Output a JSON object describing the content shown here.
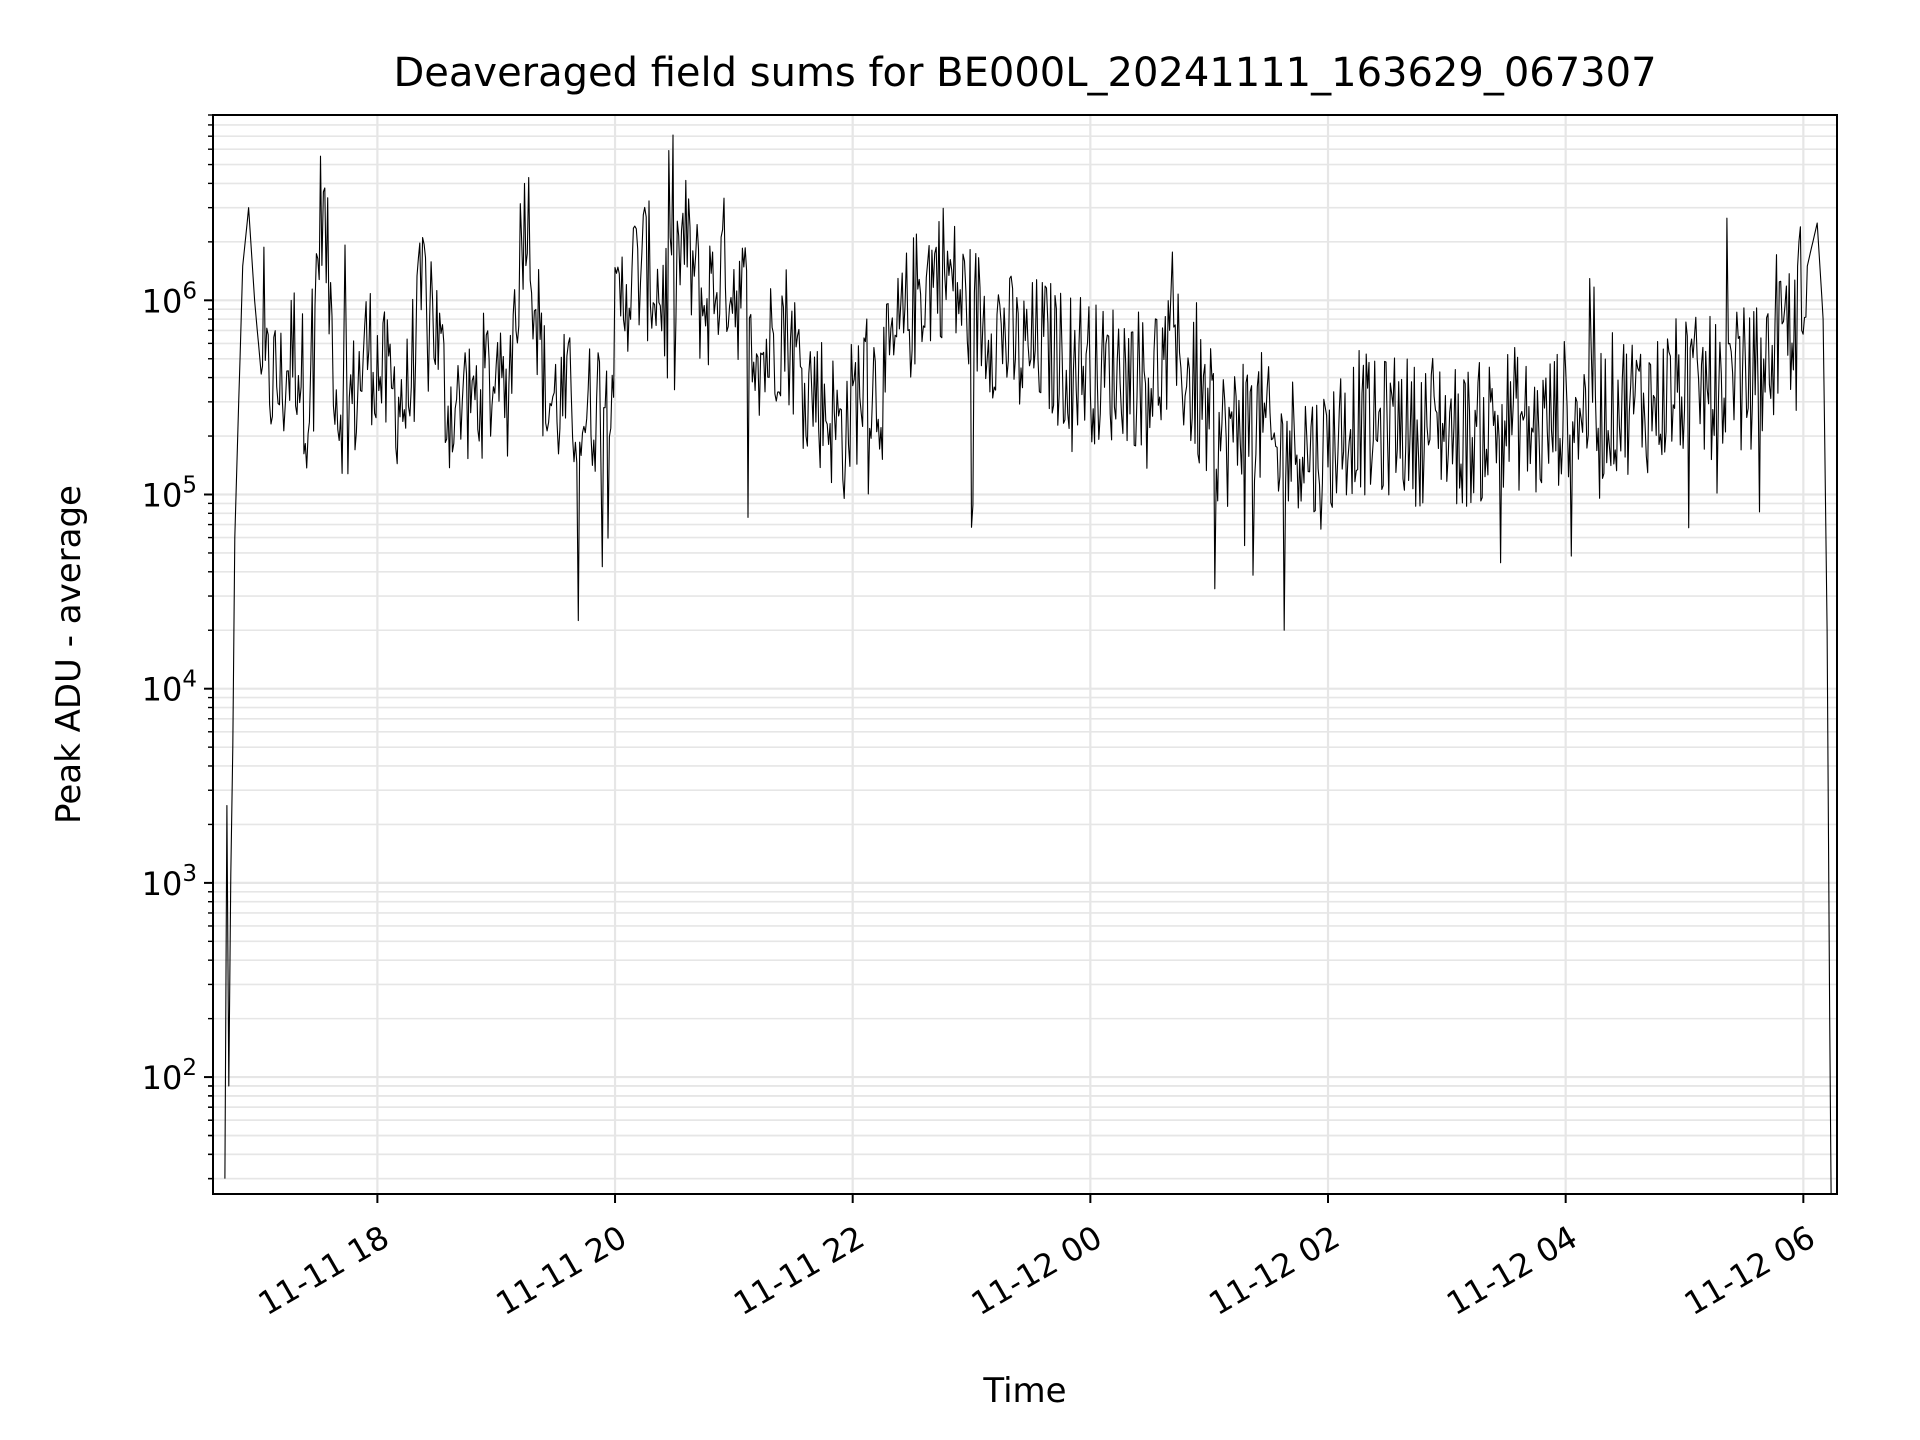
{
  "chart_data": {
    "type": "line",
    "title": "Deaveraged field sums for BE000L_20241111_163629_067307",
    "xlabel": "Time",
    "ylabel": "Peak ADU - average",
    "y_scale": "log",
    "ylim": [
      25,
      9000000
    ],
    "xlim": [
      "2024-11-11 16:37",
      "2024-11-12 06:17"
    ],
    "grid": true,
    "line_color": "#000000",
    "grid_color": "#e6e6e6",
    "x_ticks": [
      {
        "value": "2024-11-11 18:00",
        "label": "11-11 18"
      },
      {
        "value": "2024-11-11 20:00",
        "label": "11-11 20"
      },
      {
        "value": "2024-11-11 22:00",
        "label": "11-11 22"
      },
      {
        "value": "2024-11-12 00:00",
        "label": "11-12 00"
      },
      {
        "value": "2024-11-12 02:00",
        "label": "11-12 02"
      },
      {
        "value": "2024-11-12 04:00",
        "label": "11-12 04"
      },
      {
        "value": "2024-11-12 06:00",
        "label": "11-12 06"
      }
    ],
    "y_ticks": [
      {
        "value": 100,
        "base": "10",
        "exp": "2"
      },
      {
        "value": 1000,
        "base": "10",
        "exp": "3"
      },
      {
        "value": 10000,
        "base": "10",
        "exp": "4"
      },
      {
        "value": 100000,
        "base": "10",
        "exp": "5"
      },
      {
        "value": 1000000,
        "base": "10",
        "exp": "6"
      }
    ],
    "series": [
      {
        "x": [
          "2024-11-11 16:43",
          "2024-11-11 16:44",
          "2024-11-11 16:45",
          "2024-11-11 16:46",
          "2024-11-11 16:47",
          "2024-11-11 16:48",
          "2024-11-11 16:50",
          "2024-11-11 16:52",
          "2024-11-11 16:55",
          "2024-11-11 16:58",
          "2024-11-11 17:02",
          "2024-11-11 17:07",
          "2024-11-11 17:12",
          "2024-11-11 17:18",
          "2024-11-11 17:25",
          "2024-11-11 17:32",
          "2024-11-11 17:40",
          "2024-11-11 17:48",
          "2024-11-11 17:55",
          "2024-11-11 18:05",
          "2024-11-11 18:15",
          "2024-11-11 18:25",
          "2024-11-11 18:35",
          "2024-11-11 18:45",
          "2024-11-11 18:55",
          "2024-11-11 19:05",
          "2024-11-11 19:15",
          "2024-11-11 19:25",
          "2024-11-11 19:35",
          "2024-11-11 19:45",
          "2024-11-11 19:55",
          "2024-11-11 20:05",
          "2024-11-11 20:15",
          "2024-11-11 20:25",
          "2024-11-11 20:35",
          "2024-11-11 20:45",
          "2024-11-11 20:55",
          "2024-11-11 21:05",
          "2024-11-11 21:15",
          "2024-11-11 21:25",
          "2024-11-11 21:35",
          "2024-11-11 21:45",
          "2024-11-11 21:55",
          "2024-11-11 22:05",
          "2024-11-11 22:15",
          "2024-11-11 22:25",
          "2024-11-11 22:35",
          "2024-11-11 22:45",
          "2024-11-11 22:55",
          "2024-11-11 23:05",
          "2024-11-11 23:15",
          "2024-11-11 23:25",
          "2024-11-11 23:35",
          "2024-11-11 23:45",
          "2024-11-11 23:55",
          "2024-11-12 00:05",
          "2024-11-12 00:15",
          "2024-11-12 00:25",
          "2024-11-12 00:35",
          "2024-11-12 00:45",
          "2024-11-12 00:55",
          "2024-11-12 01:05",
          "2024-11-12 01:15",
          "2024-11-12 01:25",
          "2024-11-12 01:35",
          "2024-11-12 01:45",
          "2024-11-12 01:55",
          "2024-11-12 02:05",
          "2024-11-12 02:15",
          "2024-11-12 02:25",
          "2024-11-12 02:35",
          "2024-11-12 02:45",
          "2024-11-12 02:55",
          "2024-11-12 03:05",
          "2024-11-12 03:15",
          "2024-11-12 03:25",
          "2024-11-12 03:35",
          "2024-11-12 03:45",
          "2024-11-12 03:55",
          "2024-11-12 04:05",
          "2024-11-12 04:15",
          "2024-11-12 04:25",
          "2024-11-12 04:35",
          "2024-11-12 04:45",
          "2024-11-12 04:55",
          "2024-11-12 05:05",
          "2024-11-12 05:15",
          "2024-11-12 05:25",
          "2024-11-12 05:35",
          "2024-11-12 05:45",
          "2024-11-12 05:55",
          "2024-11-12 06:02",
          "2024-11-12 06:07",
          "2024-11-12 06:10",
          "2024-11-12 06:12",
          "2024-11-12 06:14"
        ],
        "y": [
          30,
          2500,
          90,
          1100,
          5000,
          60000,
          300000,
          1500000,
          3000000,
          1000000,
          350000,
          400000,
          350000,
          600000,
          300000,
          3500000,
          300000,
          300000,
          600000,
          350000,
          300000,
          1500000,
          300000,
          250000,
          400000,
          300000,
          3500000,
          300000,
          300000,
          250000,
          350000,
          1200000,
          1500000,
          1000000,
          2000000,
          900000,
          1500000,
          1000000,
          500000,
          800000,
          400000,
          300000,
          200000,
          400000,
          350000,
          700000,
          1200000,
          1500000,
          1000000,
          800000,
          700000,
          500000,
          600000,
          500000,
          500000,
          400000,
          450000,
          400000,
          450000,
          500000,
          300000,
          200000,
          200000,
          250000,
          150000,
          200000,
          150000,
          200000,
          250000,
          200000,
          250000,
          200000,
          250000,
          200000,
          200000,
          250000,
          250000,
          200000,
          250000,
          300000,
          250000,
          300000,
          300000,
          300000,
          350000,
          350000,
          350000,
          400000,
          400000,
          500000,
          800000,
          1500000,
          2500000,
          800000,
          20000,
          20
        ]
      }
    ]
  }
}
